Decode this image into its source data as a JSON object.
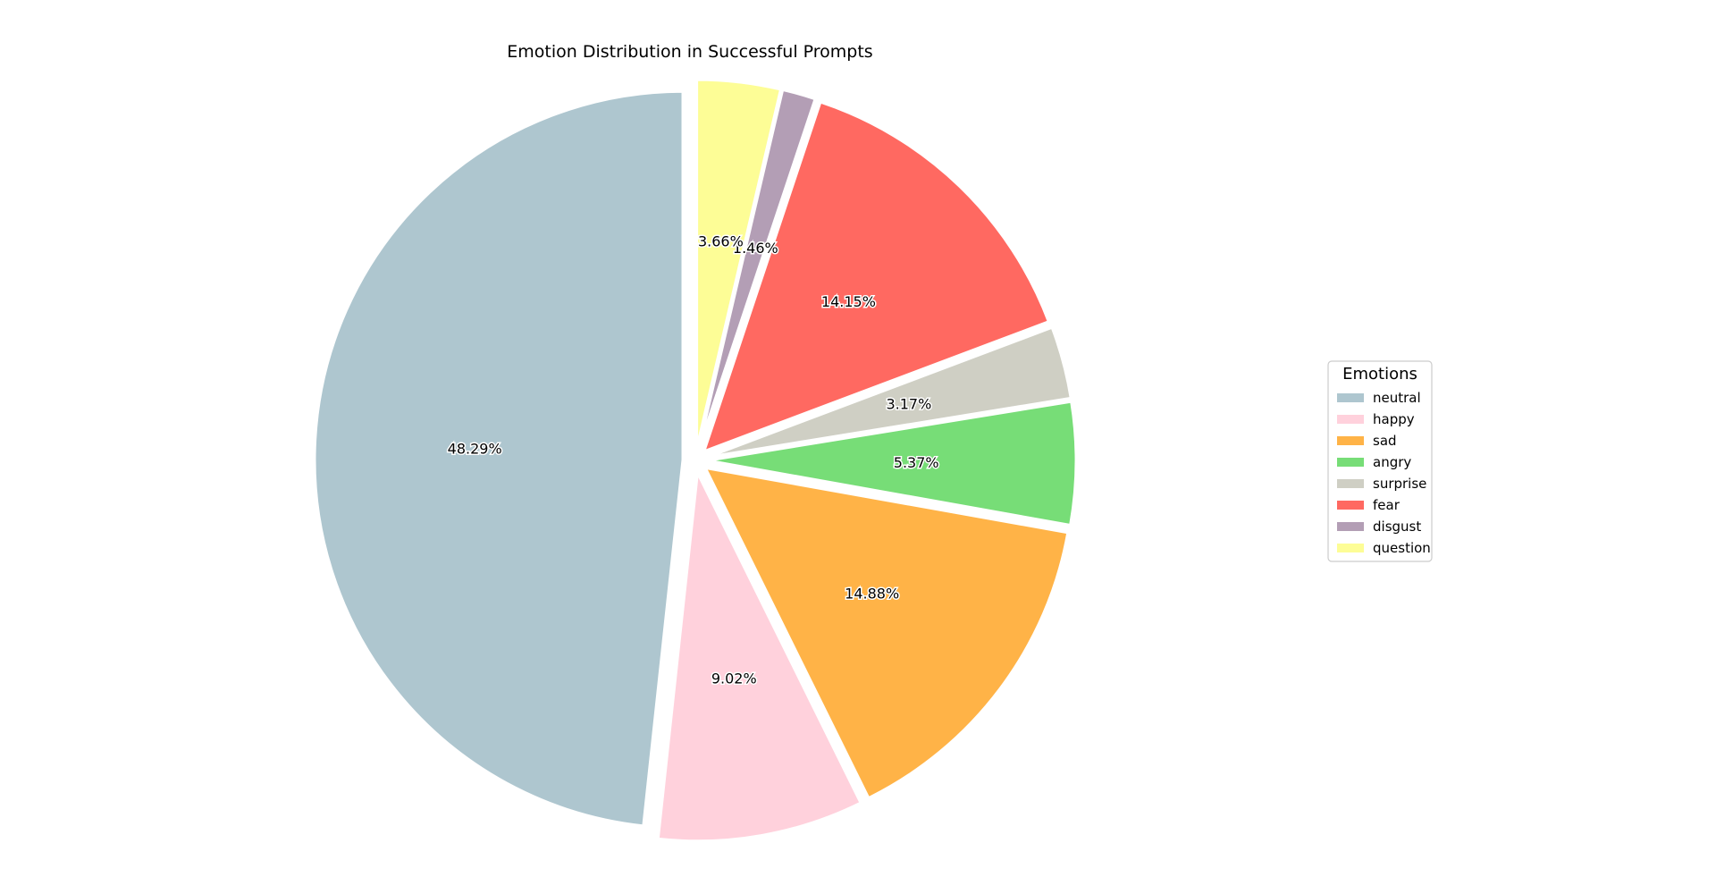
{
  "chart_data": {
    "type": "pie",
    "title": "Emotion Distribution in Successful Prompts",
    "categories": [
      "neutral",
      "happy",
      "sad",
      "angry",
      "surprise",
      "fear",
      "disgust",
      "question"
    ],
    "values": [
      48.29,
      9.02,
      14.88,
      5.37,
      3.17,
      14.15,
      1.46,
      3.66
    ],
    "labels": [
      "48.29%",
      "9.02%",
      "14.88%",
      "5.37%",
      "3.17%",
      "14.15%",
      "1.46%",
      "3.66%"
    ],
    "colors": [
      "#aec6cf",
      "#ffd1dc",
      "#ffb347",
      "#77dd77",
      "#cfcfc4",
      "#ff6961",
      "#b39eb5",
      "#fdfd96"
    ],
    "start_angle_deg": 90,
    "direction": "counterclockwise",
    "exploded": true,
    "legend": {
      "title": "Emotions",
      "placement": "center-right"
    }
  }
}
